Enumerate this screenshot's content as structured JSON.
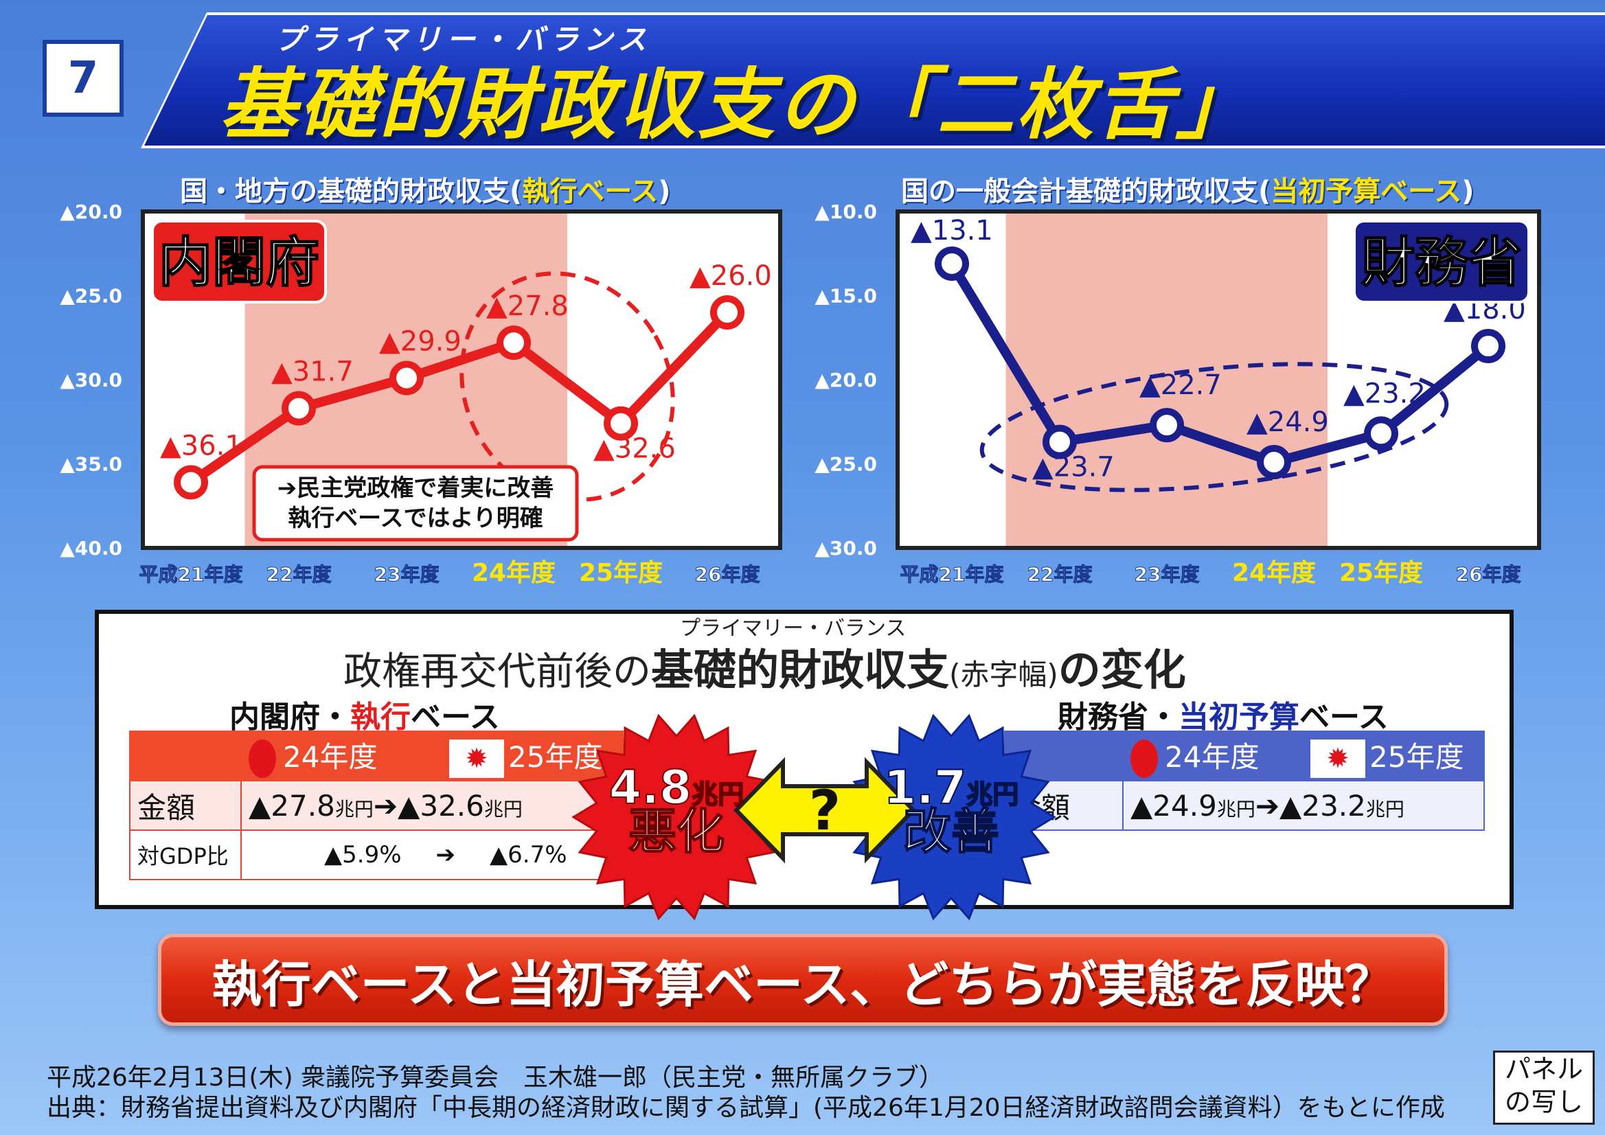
{
  "header": {
    "number": "7",
    "ruby": "プライマリー・バランス",
    "title": "基礎的財政収支の「二枚舌」"
  },
  "colors": {
    "red": "#e61e1e",
    "navy": "#1a1f8c",
    "pink_band": "#f3b9ae"
  },
  "chart_data": [
    {
      "type": "line",
      "title_prefix": "国・地方の基礎的財政収支(",
      "title_highlight": "執行ベース",
      "title_suffix": ")",
      "badge": "内閣府",
      "categories": [
        "平成21年度",
        "22年度",
        "23年度",
        "24年度",
        "25年度",
        "26年度"
      ],
      "highlight_categories": [
        "24年度",
        "25年度"
      ],
      "values": [
        -36.1,
        -31.7,
        -29.9,
        -27.8,
        -32.6,
        -26.0
      ],
      "value_labels": [
        "▲36.1",
        "▲31.7",
        "▲29.9",
        "▲27.8",
        "▲32.6",
        "▲26.0"
      ],
      "ylim": [
        -40,
        -20
      ],
      "yticks": [
        "▲20.0",
        "▲25.0",
        "▲30.0",
        "▲35.0",
        "▲40.0"
      ],
      "shaded_range": [
        "22年度",
        "24年度"
      ],
      "circled": [
        "24年度",
        "25年度"
      ],
      "annotation": [
        "➔民主党政権で着実に改善",
        "執行ベースではより明確"
      ],
      "color": "#e61e1e"
    },
    {
      "type": "line",
      "title_prefix": "国の一般会計基礎的財政収支(",
      "title_highlight": "当初予算ベース",
      "title_suffix": ")",
      "badge": "財務省",
      "categories": [
        "平成21年度",
        "22年度",
        "23年度",
        "24年度",
        "25年度",
        "26年度"
      ],
      "highlight_categories": [
        "24年度",
        "25年度"
      ],
      "values": [
        -13.1,
        -23.7,
        -22.7,
        -24.9,
        -23.2,
        -18.0
      ],
      "value_labels": [
        "▲13.1",
        "▲23.7",
        "▲22.7",
        "▲24.9",
        "▲23.2",
        "▲18.0"
      ],
      "ylim": [
        -30,
        -10
      ],
      "yticks": [
        "▲10.0",
        "▲15.0",
        "▲20.0",
        "▲25.0",
        "▲30.0"
      ],
      "shaded_range": [
        "22年度",
        "24年度"
      ],
      "circled": [
        "24年度",
        "25年度"
      ],
      "color": "#1a1f8c"
    }
  ],
  "middle": {
    "ruby": "プライマリー・バランス",
    "title_pre": "政権再交代前後の",
    "title_bold": "基礎的財政収支",
    "title_paren": "(赤字幅)",
    "title_post": "の変化",
    "left_head_a": "内閣府・",
    "left_head_b": "執行",
    "left_head_c": "ベース",
    "right_head_a": "財務省・",
    "right_head_b": "当初予算",
    "right_head_c": "ベース",
    "year_a": "24年度",
    "year_b": "25年度",
    "row_amount": "金額",
    "row_gdp": "対GDP比",
    "left_amount_a": "▲27.8",
    "left_amount_b": "▲32.6",
    "unit": "兆円",
    "left_gdp_a": "▲5.9%",
    "left_gdp_b": "▲6.7%",
    "right_amount_a": "▲24.9",
    "right_amount_b": "▲23.2",
    "arrow": "➔",
    "left_burst_value": "4.8",
    "left_burst_word": "悪化",
    "right_burst_value": "1.7",
    "right_burst_word": "改善",
    "question": "?"
  },
  "bottom": {
    "question": "執行ベースと当初予算ベース、どちらが実態を反映？"
  },
  "footer": {
    "line1": "平成26年2月13日(木) 衆議院予算委員会　玉木雄一郎（民主党・無所属クラブ）",
    "line2": "出典：財務省提出資料及び内閣府「中長期の経済財政に関する試算」(平成26年1月20日経済財政諮問会議資料）をもとに作成",
    "panel_a": "パネル",
    "panel_b": "の写し"
  }
}
